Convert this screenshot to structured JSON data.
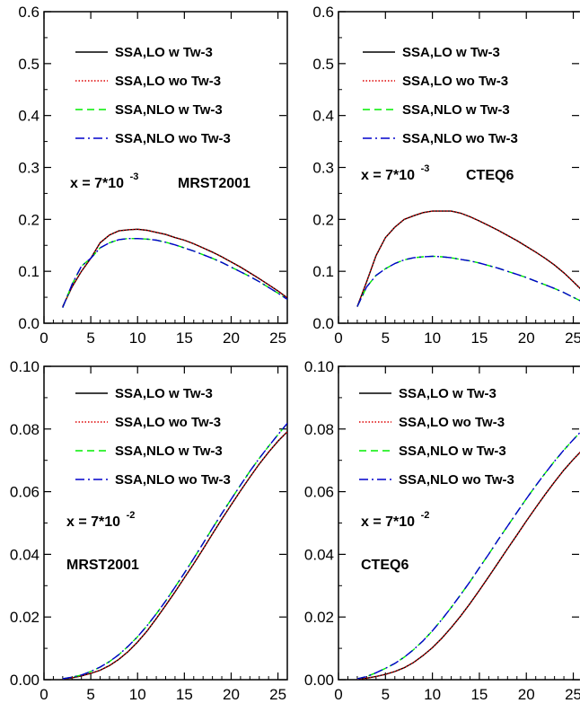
{
  "chart_data": [
    {
      "type": "line",
      "xlim": [
        0,
        26
      ],
      "ylim": [
        0,
        0.6
      ],
      "xticks": [
        0,
        5,
        10,
        15,
        20,
        25
      ],
      "xtick_labels": [
        "0",
        "5",
        "10",
        "15",
        "20",
        "25"
      ],
      "yticks": [
        0.0,
        0.1,
        0.2,
        0.3,
        0.4,
        0.5,
        0.6
      ],
      "ytick_labels": [
        "0.0",
        "0.1",
        "0.2",
        "0.3",
        "0.4",
        "0.5",
        "0.6"
      ],
      "annotation": {
        "x_label": "x = 7*10",
        "x_exp": "-3",
        "pdf": "MRST2001"
      },
      "x": [
        2,
        3,
        4,
        5,
        6,
        7,
        8,
        9,
        10,
        11,
        12,
        13,
        14,
        15,
        16,
        17,
        18,
        19,
        20,
        21,
        22,
        23,
        24,
        25,
        26
      ],
      "series": [
        {
          "name": "SSA,LO w Tw-3",
          "values": [
            0.032,
            0.07,
            0.1,
            0.125,
            0.155,
            0.17,
            0.178,
            0.18,
            0.181,
            0.179,
            0.175,
            0.171,
            0.165,
            0.16,
            0.153,
            0.145,
            0.137,
            0.128,
            0.118,
            0.108,
            0.097,
            0.086,
            0.074,
            0.062,
            0.049
          ]
        },
        {
          "name": "SSA,LO wo Tw-3",
          "values": [
            0.032,
            0.07,
            0.1,
            0.125,
            0.155,
            0.17,
            0.178,
            0.18,
            0.181,
            0.179,
            0.175,
            0.171,
            0.165,
            0.16,
            0.153,
            0.145,
            0.137,
            0.128,
            0.118,
            0.108,
            0.097,
            0.086,
            0.074,
            0.062,
            0.049
          ]
        },
        {
          "name": "SSA,NLO w Tw-3",
          "values": [
            0.03,
            0.075,
            0.11,
            0.125,
            0.145,
            0.155,
            0.161,
            0.163,
            0.163,
            0.162,
            0.16,
            0.156,
            0.151,
            0.145,
            0.139,
            0.132,
            0.125,
            0.117,
            0.108,
            0.099,
            0.09,
            0.08,
            0.069,
            0.058,
            0.046
          ]
        },
        {
          "name": "SSA,NLO wo Tw-3",
          "values": [
            0.03,
            0.075,
            0.11,
            0.125,
            0.145,
            0.155,
            0.161,
            0.163,
            0.163,
            0.162,
            0.16,
            0.156,
            0.151,
            0.145,
            0.139,
            0.132,
            0.125,
            0.117,
            0.108,
            0.099,
            0.09,
            0.08,
            0.069,
            0.058,
            0.046
          ]
        }
      ]
    },
    {
      "type": "line",
      "xlim": [
        0,
        26
      ],
      "ylim": [
        0,
        0.6
      ],
      "xticks": [
        0,
        5,
        10,
        15,
        20,
        25
      ],
      "xtick_labels": [
        "0",
        "5",
        "10",
        "15",
        "20",
        "25"
      ],
      "yticks": [
        0.0,
        0.1,
        0.2,
        0.3,
        0.4,
        0.5,
        0.6
      ],
      "ytick_labels": [
        "0.0",
        "0.1",
        "0.2",
        "0.3",
        "0.4",
        "0.5",
        "0.6"
      ],
      "annotation": {
        "x_label": "x = 7*10",
        "x_exp": "-3",
        "pdf": "CTEQ6"
      },
      "x": [
        2,
        3,
        4,
        5,
        6,
        7,
        8,
        9,
        10,
        11,
        12,
        13,
        14,
        15,
        16,
        17,
        18,
        19,
        20,
        21,
        22,
        23,
        24,
        25,
        26
      ],
      "series": [
        {
          "name": "SSA,LO w Tw-3",
          "values": [
            0.032,
            0.08,
            0.13,
            0.165,
            0.185,
            0.2,
            0.207,
            0.213,
            0.216,
            0.216,
            0.216,
            0.212,
            0.205,
            0.197,
            0.188,
            0.179,
            0.169,
            0.159,
            0.148,
            0.137,
            0.125,
            0.112,
            0.097,
            0.08,
            0.062
          ]
        },
        {
          "name": "SSA,LO wo Tw-3",
          "values": [
            0.032,
            0.08,
            0.13,
            0.165,
            0.185,
            0.2,
            0.207,
            0.213,
            0.216,
            0.216,
            0.216,
            0.212,
            0.205,
            0.197,
            0.188,
            0.179,
            0.169,
            0.159,
            0.148,
            0.137,
            0.125,
            0.112,
            0.097,
            0.08,
            0.062
          ]
        },
        {
          "name": "SSA,NLO w Tw-3",
          "values": [
            0.032,
            0.07,
            0.092,
            0.105,
            0.115,
            0.122,
            0.126,
            0.128,
            0.129,
            0.128,
            0.126,
            0.123,
            0.12,
            0.116,
            0.111,
            0.106,
            0.1,
            0.094,
            0.088,
            0.081,
            0.074,
            0.067,
            0.059,
            0.05,
            0.041
          ]
        },
        {
          "name": "SSA,NLO wo Tw-3",
          "values": [
            0.032,
            0.07,
            0.092,
            0.105,
            0.115,
            0.122,
            0.126,
            0.128,
            0.129,
            0.128,
            0.126,
            0.123,
            0.12,
            0.116,
            0.111,
            0.106,
            0.1,
            0.094,
            0.088,
            0.081,
            0.074,
            0.067,
            0.059,
            0.05,
            0.041
          ]
        }
      ]
    },
    {
      "type": "line",
      "xlim": [
        0,
        26
      ],
      "ylim": [
        0,
        0.1
      ],
      "xticks": [
        0,
        5,
        10,
        15,
        20,
        25
      ],
      "xtick_labels": [
        "0",
        "5",
        "10",
        "15",
        "20",
        "25"
      ],
      "yticks": [
        0.0,
        0.02,
        0.04,
        0.06,
        0.08,
        0.1
      ],
      "ytick_labels": [
        "0.00",
        "0.02",
        "0.04",
        "0.06",
        "0.08",
        "0.10"
      ],
      "annotation": {
        "x_label": "x = 7*10",
        "x_exp": "-2",
        "pdf": "MRST2001"
      },
      "x": [
        2,
        3,
        4,
        5,
        6,
        7,
        8,
        9,
        10,
        11,
        12,
        13,
        14,
        15,
        16,
        17,
        18,
        19,
        20,
        21,
        22,
        23,
        24,
        25,
        26
      ],
      "series": [
        {
          "name": "SSA,LO w Tw-3",
          "values": [
            0.0002,
            0.0006,
            0.0012,
            0.002,
            0.003,
            0.0045,
            0.0065,
            0.009,
            0.012,
            0.0155,
            0.0195,
            0.0237,
            0.028,
            0.0325,
            0.037,
            0.0417,
            0.0465,
            0.0512,
            0.0558,
            0.0603,
            0.0646,
            0.0688,
            0.0726,
            0.0761,
            0.0791
          ]
        },
        {
          "name": "SSA,LO wo Tw-3",
          "values": [
            0.0002,
            0.0006,
            0.0012,
            0.002,
            0.003,
            0.0045,
            0.0065,
            0.009,
            0.012,
            0.0155,
            0.0195,
            0.0237,
            0.028,
            0.0325,
            0.037,
            0.0417,
            0.0465,
            0.0512,
            0.0558,
            0.0603,
            0.0646,
            0.0688,
            0.0726,
            0.0761,
            0.0791
          ]
        },
        {
          "name": "SSA,NLO w Tw-3",
          "values": [
            0.0003,
            0.0008,
            0.0015,
            0.0026,
            0.004,
            0.0058,
            0.008,
            0.0107,
            0.0137,
            0.0172,
            0.021,
            0.0251,
            0.0295,
            0.034,
            0.0387,
            0.0435,
            0.0483,
            0.053,
            0.0576,
            0.0621,
            0.0665,
            0.0706,
            0.0745,
            0.0782,
            0.0818
          ]
        },
        {
          "name": "SSA,NLO wo Tw-3",
          "values": [
            0.0003,
            0.0008,
            0.0015,
            0.0026,
            0.004,
            0.0058,
            0.008,
            0.0107,
            0.0137,
            0.0172,
            0.021,
            0.0251,
            0.0295,
            0.034,
            0.0387,
            0.0435,
            0.0483,
            0.053,
            0.0576,
            0.0621,
            0.0665,
            0.0706,
            0.0745,
            0.0782,
            0.0818
          ]
        }
      ]
    },
    {
      "type": "line",
      "xlim": [
        0,
        26
      ],
      "ylim": [
        0,
        0.1
      ],
      "xticks": [
        0,
        5,
        10,
        15,
        20,
        25
      ],
      "xtick_labels": [
        "0",
        "5",
        "10",
        "15",
        "20",
        "25"
      ],
      "yticks": [
        0.0,
        0.02,
        0.04,
        0.06,
        0.08,
        0.1
      ],
      "ytick_labels": [
        "0.00",
        "0.02",
        "0.04",
        "0.06",
        "0.08",
        "0.10"
      ],
      "annotation": {
        "x_label": "x = 7*10",
        "x_exp": "-2",
        "pdf": "CTEQ6"
      },
      "x": [
        2,
        3,
        4,
        5,
        6,
        7,
        8,
        9,
        10,
        11,
        12,
        13,
        14,
        15,
        16,
        17,
        18,
        19,
        20,
        21,
        22,
        23,
        24,
        25,
        26
      ],
      "series": [
        {
          "name": "SSA,LO w Tw-3",
          "values": [
            0.0002,
            0.0005,
            0.001,
            0.0017,
            0.0026,
            0.0038,
            0.0055,
            0.0077,
            0.0102,
            0.0132,
            0.0166,
            0.0203,
            0.0243,
            0.0285,
            0.0329,
            0.0373,
            0.0418,
            0.0462,
            0.0506,
            0.0549,
            0.0591,
            0.0631,
            0.0669,
            0.0703,
            0.0734
          ]
        },
        {
          "name": "SSA,LO wo Tw-3",
          "values": [
            0.0002,
            0.0005,
            0.001,
            0.0017,
            0.0026,
            0.0038,
            0.0055,
            0.0077,
            0.0102,
            0.0132,
            0.0166,
            0.0203,
            0.0243,
            0.0285,
            0.0329,
            0.0373,
            0.0418,
            0.0462,
            0.0506,
            0.0549,
            0.0591,
            0.0631,
            0.0669,
            0.0703,
            0.0734
          ]
        },
        {
          "name": "SSA,NLO w Tw-3",
          "values": [
            0.0003,
            0.001,
            0.0022,
            0.0036,
            0.0052,
            0.0072,
            0.0096,
            0.0124,
            0.0156,
            0.0192,
            0.023,
            0.0271,
            0.0313,
            0.0357,
            0.0401,
            0.0446,
            0.049,
            0.0534,
            0.0577,
            0.0619,
            0.0659,
            0.0697,
            0.0733,
            0.0766,
            0.0798
          ]
        },
        {
          "name": "SSA,NLO wo Tw-3",
          "values": [
            0.0003,
            0.001,
            0.0022,
            0.0036,
            0.0052,
            0.0072,
            0.0096,
            0.0124,
            0.0156,
            0.0192,
            0.023,
            0.0271,
            0.0313,
            0.0357,
            0.0401,
            0.0446,
            0.049,
            0.0534,
            0.0577,
            0.0619,
            0.0659,
            0.0697,
            0.0733,
            0.0766,
            0.0798
          ]
        }
      ]
    }
  ],
  "series_styles": [
    {
      "color": "#000000",
      "dash": ""
    },
    {
      "color": "#dd0000",
      "dash": "1.5,2"
    },
    {
      "color": "#00ee00",
      "dash": "8,5"
    },
    {
      "color": "#0000cc",
      "dash": "10,4,2,4"
    }
  ]
}
